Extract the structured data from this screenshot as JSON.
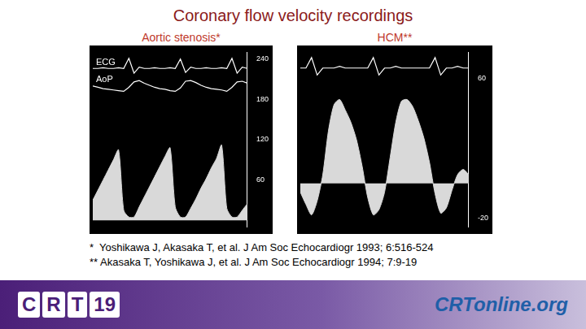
{
  "title": "Coronary flow velocity recordings",
  "chart_data": [
    {
      "type": "line",
      "title": "Aortic stenosis*",
      "x": [
        0,
        1,
        2,
        3,
        4,
        5,
        6,
        7,
        8,
        9,
        10,
        11,
        12,
        13,
        14,
        15,
        16,
        17,
        18,
        19,
        20,
        21,
        22,
        23,
        24,
        25,
        26,
        27,
        28,
        29,
        30
      ],
      "xlim": [
        0,
        30
      ],
      "ylim": [
        -10,
        250
      ],
      "yticks": [
        60,
        120,
        180,
        240
      ],
      "grid": false,
      "tick_labels": "y",
      "series": [
        {
          "name": "ECG",
          "type": "line",
          "color": "#ffffff",
          "values": [
            226,
            226,
            227,
            226,
            226,
            227,
            226,
            241,
            219,
            228,
            226,
            226,
            227,
            226,
            226,
            227,
            226,
            240,
            220,
            228,
            226,
            226,
            227,
            226,
            226,
            227,
            226,
            241,
            219,
            228,
            226
          ]
        },
        {
          "name": "AoP",
          "type": "line",
          "color": "#ffffff",
          "values": [
            200,
            198,
            196,
            195,
            194,
            193,
            192,
            198,
            206,
            208,
            204,
            201,
            198,
            196,
            195,
            193,
            192,
            197,
            207,
            208,
            205,
            201,
            198,
            196,
            195,
            194,
            192,
            198,
            206,
            207,
            204
          ]
        },
        {
          "type": "area",
          "color": "#d9d9d9",
          "values": [
            30,
            45,
            60,
            75,
            90,
            105,
            15,
            5,
            5,
            20,
            35,
            50,
            65,
            80,
            95,
            108,
            20,
            5,
            5,
            18,
            32,
            48,
            62,
            78,
            92,
            112,
            18,
            5,
            5,
            15,
            25
          ]
        }
      ]
    },
    {
      "type": "line",
      "title": "HCM**",
      "x": [
        0,
        1,
        2,
        3,
        4,
        5,
        6,
        7,
        8,
        9,
        10,
        11,
        12,
        13,
        14,
        15,
        16,
        17,
        18,
        19,
        20,
        21,
        22,
        23,
        24,
        25,
        26,
        27,
        28,
        29,
        30
      ],
      "xlim": [
        0,
        30
      ],
      "ylim": [
        -25,
        75
      ],
      "yticks": [
        -20,
        60
      ],
      "grid": false,
      "tick_labels": "y",
      "series": [
        {
          "type": "line",
          "color": "#ffffff",
          "values": [
            66,
            66,
            72,
            62,
            66,
            66,
            66,
            67,
            66,
            66,
            66,
            66,
            66,
            72,
            62,
            66,
            66,
            67,
            66,
            66,
            66,
            66,
            66,
            66,
            72,
            62,
            66,
            66,
            67,
            66,
            66
          ]
        },
        {
          "type": "area",
          "color": "#d9d9d9",
          "values": [
            -5,
            -12,
            -18,
            -10,
            5,
            30,
            45,
            48,
            42,
            35,
            25,
            10,
            -8,
            -18,
            -15,
            -5,
            15,
            35,
            47,
            48,
            44,
            36,
            26,
            12,
            -6,
            -17,
            -14,
            -4,
            5,
            8,
            5
          ]
        }
      ]
    }
  ],
  "references": [
    "*  Yoshikawa J, Akasaka T, et al. J Am Soc Echocardiogr 1993; 6:516-524",
    "** Akasaka T, Yoshikawa J, et al. J Am Soc Echocardiogr 1994; 7:9-19"
  ],
  "footer": {
    "logo_left": [
      "C",
      "R",
      "T",
      "19"
    ],
    "logo_right": "CRTonline.org"
  }
}
